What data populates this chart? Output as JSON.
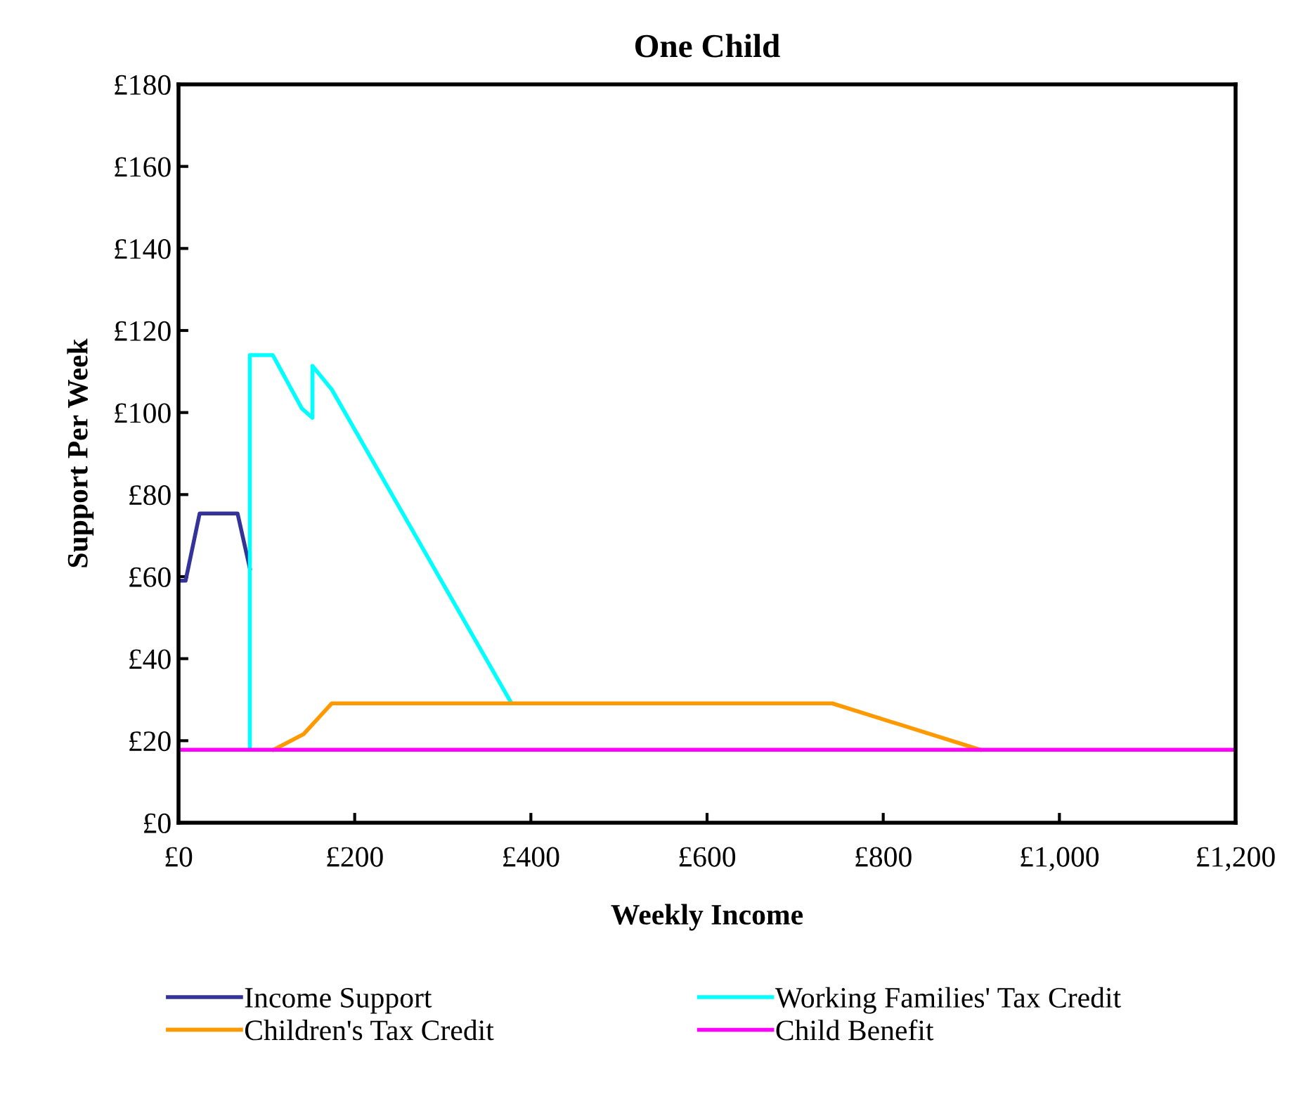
{
  "chart_data": {
    "type": "line",
    "title": "One Child",
    "xlabel": "Weekly Income",
    "ylabel": "Support Per Week",
    "xlim": [
      0,
      1200
    ],
    "xticks": [
      {
        "value": 0,
        "label": "£0"
      },
      {
        "value": 200,
        "label": "£200"
      },
      {
        "value": 400,
        "label": "£400"
      },
      {
        "value": 600,
        "label": "£600"
      },
      {
        "value": 800,
        "label": "£800"
      },
      {
        "value": 1000,
        "label": "£1,000"
      },
      {
        "value": 1200,
        "label": "£1,200"
      }
    ],
    "ylim": [
      0,
      180
    ],
    "yticks": [
      {
        "value": 0,
        "label": "£0"
      },
      {
        "value": 20,
        "label": "£20"
      },
      {
        "value": 40,
        "label": "£40"
      },
      {
        "value": 60,
        "label": "£60"
      },
      {
        "value": 80,
        "label": "£80"
      },
      {
        "value": 100,
        "label": "£100"
      },
      {
        "value": 120,
        "label": "£120"
      },
      {
        "value": 140,
        "label": "£140"
      },
      {
        "value": 160,
        "label": "£160"
      },
      {
        "value": 180,
        "label": "£180"
      }
    ],
    "grid": false,
    "legend": "bottom",
    "marker": "none",
    "line_style": "solid",
    "series": [
      {
        "name": "Income Support",
        "color": "#333399",
        "x": [
          0,
          8,
          24,
          67,
          81
        ],
        "values": [
          59,
          59,
          75.4,
          75.4,
          62
        ]
      },
      {
        "name": "Working Families' Tax Credit",
        "color": "#00ffff",
        "x": [
          81,
          81,
          107,
          140,
          152,
          152,
          174,
          377
        ],
        "values": [
          18,
          114,
          114,
          101,
          98.7,
          111.4,
          105.6,
          29.5
        ]
      },
      {
        "name": "Children's Tax Credit",
        "color": "#ff9900",
        "x": [
          108,
          142,
          174,
          742,
          910
        ],
        "values": [
          17.8,
          21.6,
          29.1,
          29.1,
          17.8
        ]
      },
      {
        "name": "Child Benefit",
        "color": "#ff00ff",
        "x": [
          0,
          1200
        ],
        "values": [
          17.8,
          17.8
        ]
      }
    ]
  }
}
